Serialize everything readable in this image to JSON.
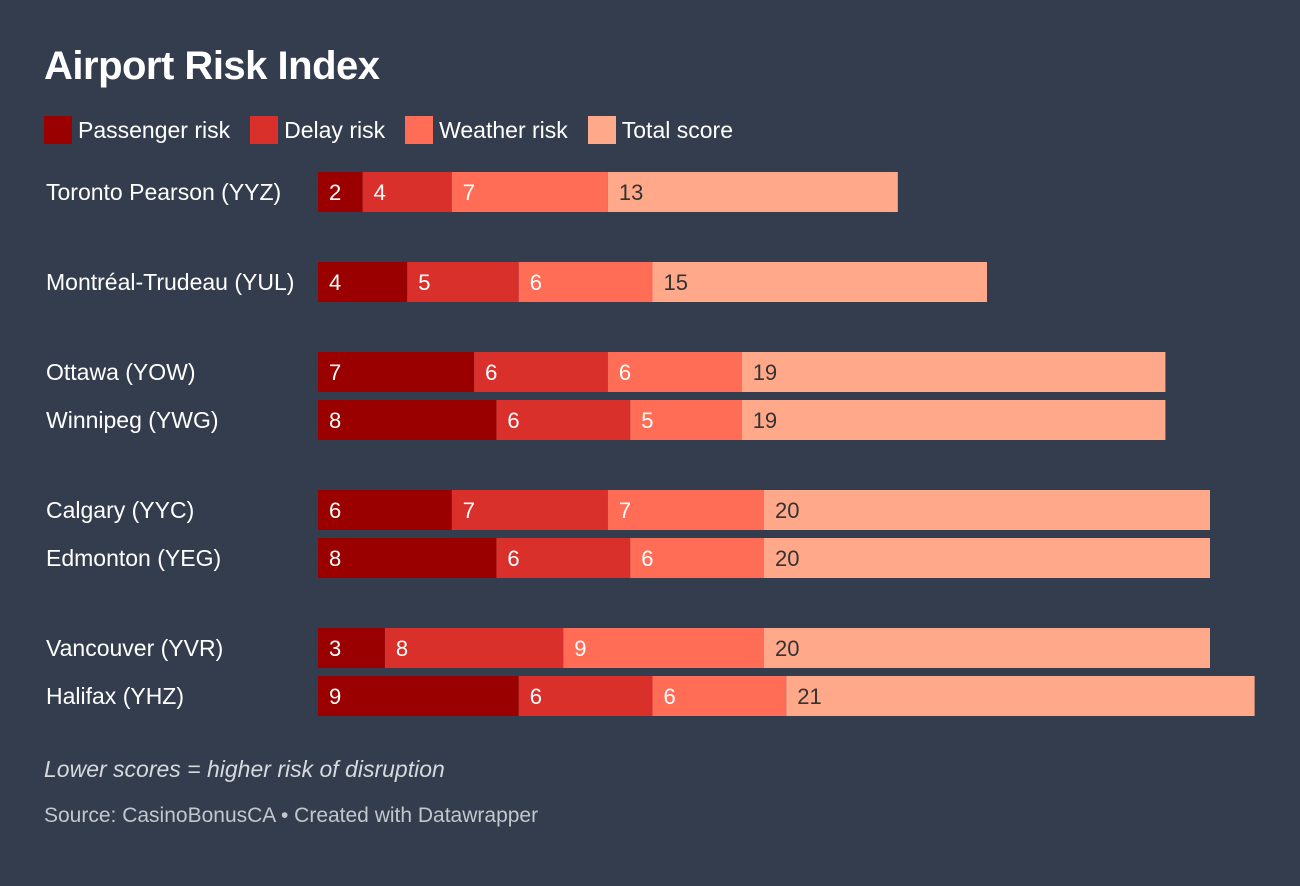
{
  "chart_data": {
    "type": "bar",
    "stacked": true,
    "orientation": "horizontal",
    "title": "Airport Risk Index",
    "categories": [
      "Toronto Pearson (YYZ)",
      "Montréal-Trudeau (YUL)",
      "Ottawa (YOW)",
      "Winnipeg (YWG)",
      "Calgary (YYC)",
      "Edmonton (YEG)",
      "Vancouver (YVR)",
      "Halifax (YHZ)"
    ],
    "series": [
      {
        "name": "Passenger risk",
        "color": "#9b0000",
        "label_color": "#ffffff",
        "values": [
          2,
          4,
          7,
          8,
          6,
          8,
          3,
          9
        ]
      },
      {
        "name": "Delay risk",
        "color": "#d9302c",
        "label_color": "#ffffff",
        "values": [
          4,
          5,
          6,
          6,
          7,
          6,
          8,
          6
        ]
      },
      {
        "name": "Weather risk",
        "color": "#ff6d56",
        "label_color": "#ffffff",
        "values": [
          7,
          6,
          6,
          5,
          7,
          6,
          9,
          6
        ]
      },
      {
        "name": "Total score",
        "color": "#ffa98a",
        "label_color": "#333333",
        "values": [
          13,
          15,
          19,
          19,
          20,
          20,
          20,
          21
        ]
      }
    ],
    "xlim": [
      0,
      42
    ],
    "legend_position": "top-left",
    "grid": false,
    "note": "Lower scores = higher risk of disruption",
    "source": "Source: CasinoBonusCA • Created with Datawrapper"
  }
}
